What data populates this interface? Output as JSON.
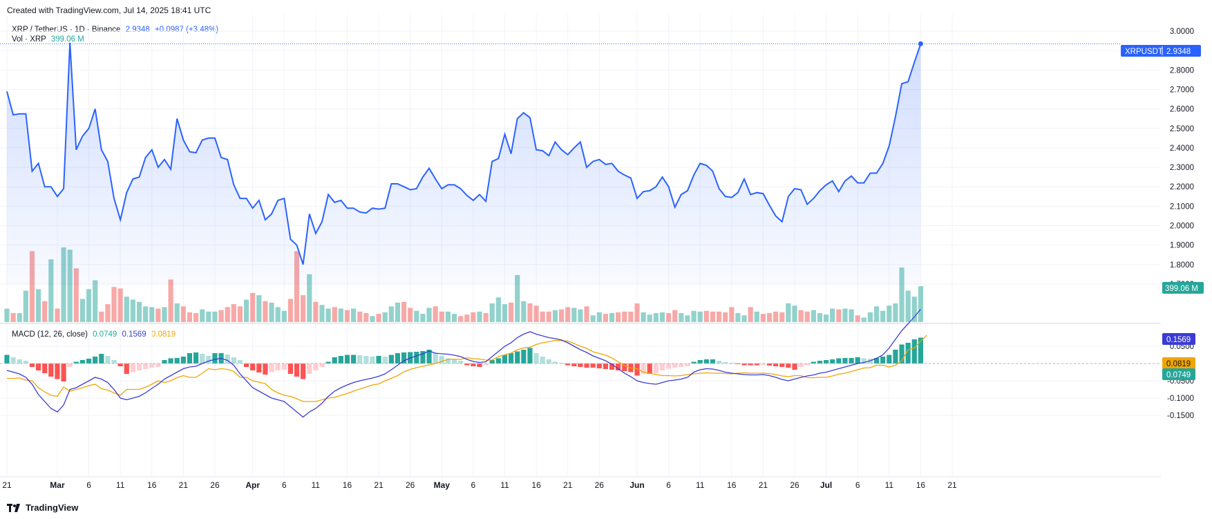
{
  "header": {
    "created": "Created with TradingView.com, Jul 14, 2025 18:41 UTC"
  },
  "legend": {
    "symbol": "XRP / TetherUS · 1D · Binance",
    "price": "2.9348",
    "change": "+0.0987 (+3.48%)",
    "vol_label": "Vol · XRP",
    "vol_value": "399.06 M",
    "macd_label": "MACD (12, 26, close)",
    "macd_hist": "0.0749",
    "macd_line": "0.1569",
    "macd_signal": "0.0819"
  },
  "badges": {
    "ticker": "XRPUSDT",
    "price": "2.9348",
    "volume": "399.06 M",
    "macd": "0.1569",
    "signal": "0.0819",
    "hist": "0.0749"
  },
  "footer": {
    "brand": "TradingView"
  },
  "colors": {
    "line": "#2962ff",
    "up": "#26a69a",
    "down": "#ef5350",
    "macd": "#3b3bd6",
    "signal": "#f0a500"
  },
  "chart_data": {
    "type": "line",
    "x_ticks": [
      {
        "label": "21",
        "d": 0
      },
      {
        "label": "Mar",
        "d": 8
      },
      {
        "label": "6",
        "d": 13
      },
      {
        "label": "11",
        "d": 18
      },
      {
        "label": "16",
        "d": 23
      },
      {
        "label": "21",
        "d": 28
      },
      {
        "label": "26",
        "d": 33
      },
      {
        "label": "Apr",
        "d": 39
      },
      {
        "label": "6",
        "d": 44
      },
      {
        "label": "11",
        "d": 49
      },
      {
        "label": "16",
        "d": 54
      },
      {
        "label": "21",
        "d": 59
      },
      {
        "label": "26",
        "d": 64
      },
      {
        "label": "May",
        "d": 69
      },
      {
        "label": "6",
        "d": 74
      },
      {
        "label": "11",
        "d": 79
      },
      {
        "label": "16",
        "d": 84
      },
      {
        "label": "21",
        "d": 89
      },
      {
        "label": "26",
        "d": 94
      },
      {
        "label": "Jun",
        "d": 100
      },
      {
        "label": "6",
        "d": 105
      },
      {
        "label": "11",
        "d": 110
      },
      {
        "label": "16",
        "d": 115
      },
      {
        "label": "21",
        "d": 120
      },
      {
        "label": "26",
        "d": 125
      },
      {
        "label": "Jul",
        "d": 130
      },
      {
        "label": "6",
        "d": 135
      },
      {
        "label": "11",
        "d": 140
      },
      {
        "label": "16",
        "d": 145
      },
      {
        "label": "21",
        "d": 150
      }
    ],
    "price": {
      "ylim": [
        1.67,
        3.03
      ],
      "ticks": [
        "3.0000",
        "2.9000",
        "2.8000",
        "2.7000",
        "2.6000",
        "2.5000",
        "2.4000",
        "2.3000",
        "2.2000",
        "2.1000",
        "2.0000",
        "1.9000",
        "1.8000",
        "1.7000"
      ],
      "close": [
        2.69,
        2.57,
        2.575,
        2.575,
        2.28,
        2.32,
        2.2,
        2.2,
        2.15,
        2.19,
        2.94,
        2.39,
        2.46,
        2.5,
        2.6,
        2.39,
        2.33,
        2.14,
        2.03,
        2.17,
        2.24,
        2.25,
        2.35,
        2.39,
        2.3,
        2.34,
        2.29,
        2.55,
        2.44,
        2.38,
        2.375,
        2.44,
        2.45,
        2.45,
        2.35,
        2.34,
        2.21,
        2.14,
        2.14,
        2.09,
        2.13,
        2.03,
        2.06,
        2.13,
        2.14,
        1.93,
        1.9,
        1.8,
        2.06,
        1.96,
        2.02,
        2.16,
        2.12,
        2.13,
        2.09,
        2.09,
        2.07,
        2.065,
        2.09,
        2.085,
        2.09,
        2.215,
        2.215,
        2.2,
        2.185,
        2.19,
        2.25,
        2.295,
        2.24,
        2.19,
        2.21,
        2.21,
        2.19,
        2.155,
        2.13,
        2.16,
        2.125,
        2.33,
        2.345,
        2.47,
        2.37,
        2.55,
        2.58,
        2.555,
        2.39,
        2.385,
        2.36,
        2.43,
        2.39,
        2.365,
        2.4,
        2.43,
        2.3,
        2.33,
        2.34,
        2.315,
        2.32,
        2.28,
        2.26,
        2.245,
        2.14,
        2.175,
        2.18,
        2.2,
        2.25,
        2.2,
        2.095,
        2.16,
        2.18,
        2.26,
        2.32,
        2.31,
        2.28,
        2.19,
        2.15,
        2.145,
        2.17,
        2.24,
        2.16,
        2.17,
        2.165,
        2.105,
        2.05,
        2.02,
        2.15,
        2.19,
        2.185,
        2.11,
        2.14,
        2.18,
        2.21,
        2.23,
        2.175,
        2.23,
        2.255,
        2.22,
        2.22,
        2.27,
        2.27,
        2.32,
        2.41,
        2.56,
        2.73,
        2.74,
        2.84,
        2.9348
      ]
    },
    "volume": {
      "values": [
        0.18,
        0.12,
        0.12,
        0.42,
        0.95,
        0.44,
        0.28,
        0.84,
        0.18,
        1.0,
        0.97,
        0.72,
        0.31,
        0.44,
        0.56,
        0.14,
        0.24,
        0.47,
        0.45,
        0.34,
        0.3,
        0.27,
        0.21,
        0.2,
        0.18,
        0.2,
        0.57,
        0.25,
        0.21,
        0.13,
        0.12,
        0.17,
        0.14,
        0.14,
        0.16,
        0.2,
        0.24,
        0.21,
        0.3,
        0.39,
        0.36,
        0.28,
        0.26,
        0.2,
        0.15,
        0.31,
        0.95,
        0.36,
        0.64,
        0.27,
        0.23,
        0.18,
        0.2,
        0.18,
        0.16,
        0.18,
        0.14,
        0.12,
        0.08,
        0.11,
        0.13,
        0.21,
        0.26,
        0.27,
        0.19,
        0.15,
        0.11,
        0.19,
        0.21,
        0.14,
        0.14,
        0.11,
        0.08,
        0.1,
        0.13,
        0.14,
        0.12,
        0.25,
        0.33,
        0.24,
        0.26,
        0.63,
        0.28,
        0.25,
        0.22,
        0.14,
        0.14,
        0.16,
        0.17,
        0.2,
        0.19,
        0.17,
        0.21,
        0.09,
        0.13,
        0.11,
        0.12,
        0.13,
        0.14,
        0.14,
        0.25,
        0.13,
        0.1,
        0.12,
        0.13,
        0.12,
        0.16,
        0.12,
        0.09,
        0.15,
        0.14,
        0.15,
        0.14,
        0.14,
        0.13,
        0.2,
        0.12,
        0.09,
        0.2,
        0.14,
        0.11,
        0.12,
        0.14,
        0.13,
        0.25,
        0.22,
        0.16,
        0.14,
        0.16,
        0.12,
        0.1,
        0.18,
        0.17,
        0.18,
        0.17,
        0.09,
        0.06,
        0.13,
        0.21,
        0.15,
        0.22,
        0.25,
        0.73,
        0.42,
        0.34,
        0.48
      ],
      "ylim": [
        0,
        1.45
      ]
    },
    "macd": {
      "ylim": [
        -0.16,
        0.19
      ],
      "ticks": [
        "0.0500",
        "0.0000",
        "-0.0500",
        "-0.1000",
        "-0.1500"
      ],
      "hist": [
        0.025,
        0.018,
        0.012,
        0.008,
        -0.01,
        -0.02,
        -0.028,
        -0.038,
        -0.045,
        -0.052,
        -0.01,
        0.005,
        0.01,
        0.014,
        0.02,
        0.028,
        0.022,
        0.01,
        -0.008,
        -0.03,
        -0.025,
        -0.02,
        -0.016,
        -0.012,
        -0.01,
        0.01,
        0.015,
        0.016,
        0.02,
        0.03,
        0.032,
        0.028,
        0.022,
        0.03,
        0.03,
        0.026,
        0.018,
        0.01,
        -0.01,
        -0.02,
        -0.026,
        -0.032,
        -0.025,
        -0.02,
        -0.018,
        -0.03,
        -0.038,
        -0.045,
        -0.03,
        -0.02,
        -0.01,
        0.005,
        0.018,
        0.022,
        0.025,
        0.025,
        0.024,
        0.022,
        0.02,
        0.022,
        0.02,
        0.025,
        0.03,
        0.032,
        0.033,
        0.034,
        0.036,
        0.04,
        0.03,
        0.022,
        0.015,
        0.012,
        0.008,
        -0.005,
        -0.008,
        -0.01,
        -0.005,
        0.01,
        0.015,
        0.025,
        0.03,
        0.035,
        0.04,
        0.045,
        0.03,
        0.02,
        0.012,
        0.005,
        0.002,
        -0.005,
        -0.008,
        -0.01,
        -0.012,
        -0.012,
        -0.014,
        -0.016,
        -0.018,
        -0.02,
        -0.022,
        -0.025,
        -0.035,
        -0.03,
        -0.03,
        -0.028,
        -0.02,
        -0.015,
        -0.012,
        -0.01,
        -0.008,
        0.005,
        0.01,
        0.012,
        0.012,
        0.008,
        0.004,
        0.002,
        -0.002,
        -0.005,
        -0.005,
        -0.005,
        -0.004,
        -0.006,
        -0.008,
        -0.01,
        -0.012,
        -0.018,
        -0.01,
        -0.005,
        0.005,
        0.008,
        0.01,
        0.012,
        0.015,
        0.016,
        0.016,
        0.018,
        0.015,
        0.014,
        0.016,
        0.02,
        0.025,
        0.04,
        0.055,
        0.06,
        0.07,
        0.0749
      ],
      "macd_line": [
        -0.02,
        -0.025,
        -0.03,
        -0.04,
        -0.06,
        -0.09,
        -0.11,
        -0.13,
        -0.14,
        -0.12,
        -0.075,
        -0.07,
        -0.06,
        -0.05,
        -0.04,
        -0.045,
        -0.055,
        -0.075,
        -0.1,
        -0.105,
        -0.1,
        -0.095,
        -0.085,
        -0.072,
        -0.06,
        -0.045,
        -0.035,
        -0.025,
        -0.015,
        -0.01,
        -0.008,
        0.0,
        0.007,
        0.012,
        0.015,
        0.009,
        -0.005,
        -0.03,
        -0.05,
        -0.07,
        -0.08,
        -0.09,
        -0.1,
        -0.105,
        -0.11,
        -0.125,
        -0.14,
        -0.155,
        -0.14,
        -0.13,
        -0.115,
        -0.095,
        -0.08,
        -0.07,
        -0.062,
        -0.055,
        -0.05,
        -0.046,
        -0.042,
        -0.037,
        -0.03,
        -0.018,
        -0.005,
        0.008,
        0.016,
        0.022,
        0.028,
        0.036,
        0.03,
        0.028,
        0.027,
        0.024,
        0.02,
        0.012,
        0.006,
        0.003,
        0.005,
        0.02,
        0.035,
        0.05,
        0.06,
        0.075,
        0.085,
        0.092,
        0.085,
        0.08,
        0.075,
        0.072,
        0.068,
        0.06,
        0.05,
        0.04,
        0.032,
        0.022,
        0.015,
        0.008,
        -0.002,
        -0.015,
        -0.028,
        -0.038,
        -0.05,
        -0.055,
        -0.058,
        -0.06,
        -0.055,
        -0.05,
        -0.048,
        -0.045,
        -0.04,
        -0.025,
        -0.018,
        -0.015,
        -0.016,
        -0.02,
        -0.025,
        -0.028,
        -0.03,
        -0.032,
        -0.033,
        -0.033,
        -0.032,
        -0.035,
        -0.04,
        -0.046,
        -0.05,
        -0.045,
        -0.04,
        -0.036,
        -0.033,
        -0.028,
        -0.025,
        -0.02,
        -0.015,
        -0.01,
        -0.005,
        0.0,
        0.003,
        0.008,
        0.015,
        0.025,
        0.045,
        0.07,
        0.095,
        0.115,
        0.135,
        0.1569
      ],
      "signal_line": [
        -0.043,
        -0.043,
        -0.042,
        -0.048,
        -0.05,
        -0.07,
        -0.082,
        -0.092,
        -0.095,
        -0.068,
        -0.08,
        -0.075,
        -0.07,
        -0.064,
        -0.06,
        -0.073,
        -0.077,
        -0.085,
        -0.092,
        -0.075,
        -0.075,
        -0.075,
        -0.069,
        -0.06,
        -0.05,
        -0.055,
        -0.05,
        -0.041,
        -0.035,
        -0.04,
        -0.04,
        -0.028,
        -0.015,
        -0.018,
        -0.015,
        -0.017,
        -0.023,
        -0.04,
        -0.04,
        -0.05,
        -0.054,
        -0.058,
        -0.075,
        -0.085,
        -0.092,
        -0.095,
        -0.102,
        -0.11,
        -0.11,
        -0.11,
        -0.105,
        -0.1,
        -0.098,
        -0.092,
        -0.087,
        -0.08,
        -0.074,
        -0.068,
        -0.062,
        -0.059,
        -0.05,
        -0.043,
        -0.035,
        -0.024,
        -0.017,
        -0.012,
        -0.008,
        -0.004,
        0.0,
        0.006,
        0.012,
        0.012,
        0.012,
        0.017,
        0.014,
        0.013,
        0.01,
        0.01,
        0.02,
        0.025,
        0.03,
        0.04,
        0.045,
        0.047,
        0.055,
        0.06,
        0.063,
        0.067,
        0.066,
        0.065,
        0.058,
        0.05,
        0.044,
        0.034,
        0.029,
        0.024,
        0.016,
        0.005,
        -0.006,
        -0.013,
        -0.015,
        -0.025,
        -0.028,
        -0.032,
        -0.035,
        -0.035,
        -0.036,
        -0.035,
        -0.032,
        -0.03,
        -0.028,
        -0.027,
        -0.028,
        -0.028,
        -0.029,
        -0.03,
        -0.028,
        -0.027,
        -0.028,
        -0.028,
        -0.028,
        -0.029,
        -0.032,
        -0.036,
        -0.038,
        -0.035,
        -0.035,
        -0.041,
        -0.041,
        -0.04,
        -0.04,
        -0.036,
        -0.031,
        -0.028,
        -0.023,
        -0.018,
        -0.013,
        -0.012,
        -0.005,
        -0.005,
        -0.01,
        -0.005,
        0.008,
        0.04,
        0.045,
        0.065,
        0.0819
      ]
    }
  }
}
